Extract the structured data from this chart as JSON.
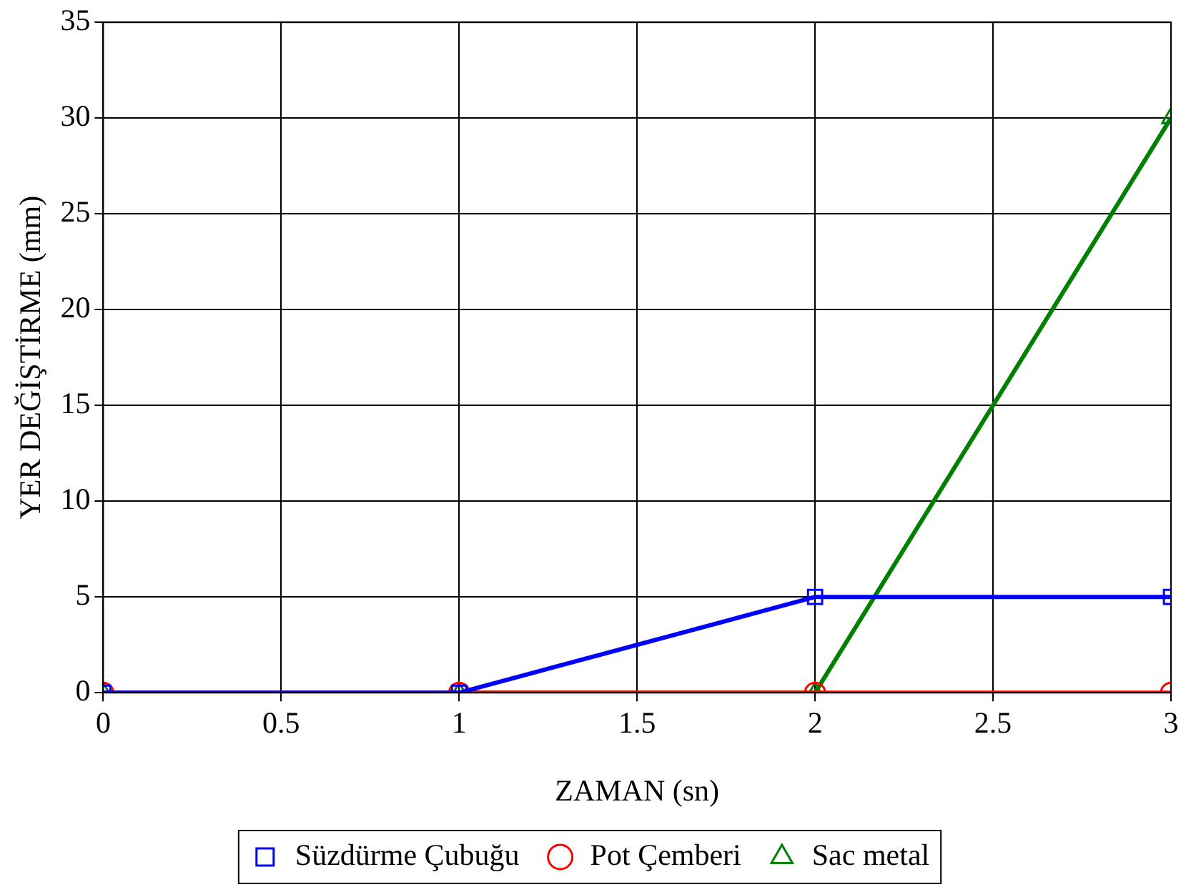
{
  "chart_data": {
    "type": "line",
    "xlabel": "ZAMAN (sn)",
    "ylabel": "YER DEĞİŞTİRME (mm)",
    "x": [
      0,
      1,
      2,
      3
    ],
    "series": [
      {
        "name": "Süzdürme Çubuğu",
        "color": "#0000ff",
        "marker": "square",
        "values": [
          0,
          0,
          5,
          5
        ]
      },
      {
        "name": "Pot Çemberi",
        "color": "#ff0000",
        "marker": "circle",
        "values": [
          0,
          0,
          0,
          0
        ]
      },
      {
        "name": "Sac metal",
        "color": "#008000",
        "marker": "triangle",
        "values": [
          0,
          0,
          0,
          30
        ]
      }
    ],
    "xlim": [
      0,
      3
    ],
    "xticks": [
      0,
      0.5,
      1,
      1.5,
      2,
      2.5,
      3
    ],
    "ylim": [
      0,
      35
    ],
    "yticks": [
      0,
      5,
      10,
      15,
      20,
      25,
      30,
      35
    ],
    "grid": true,
    "legend": "bottom",
    "line_style": "solid"
  }
}
